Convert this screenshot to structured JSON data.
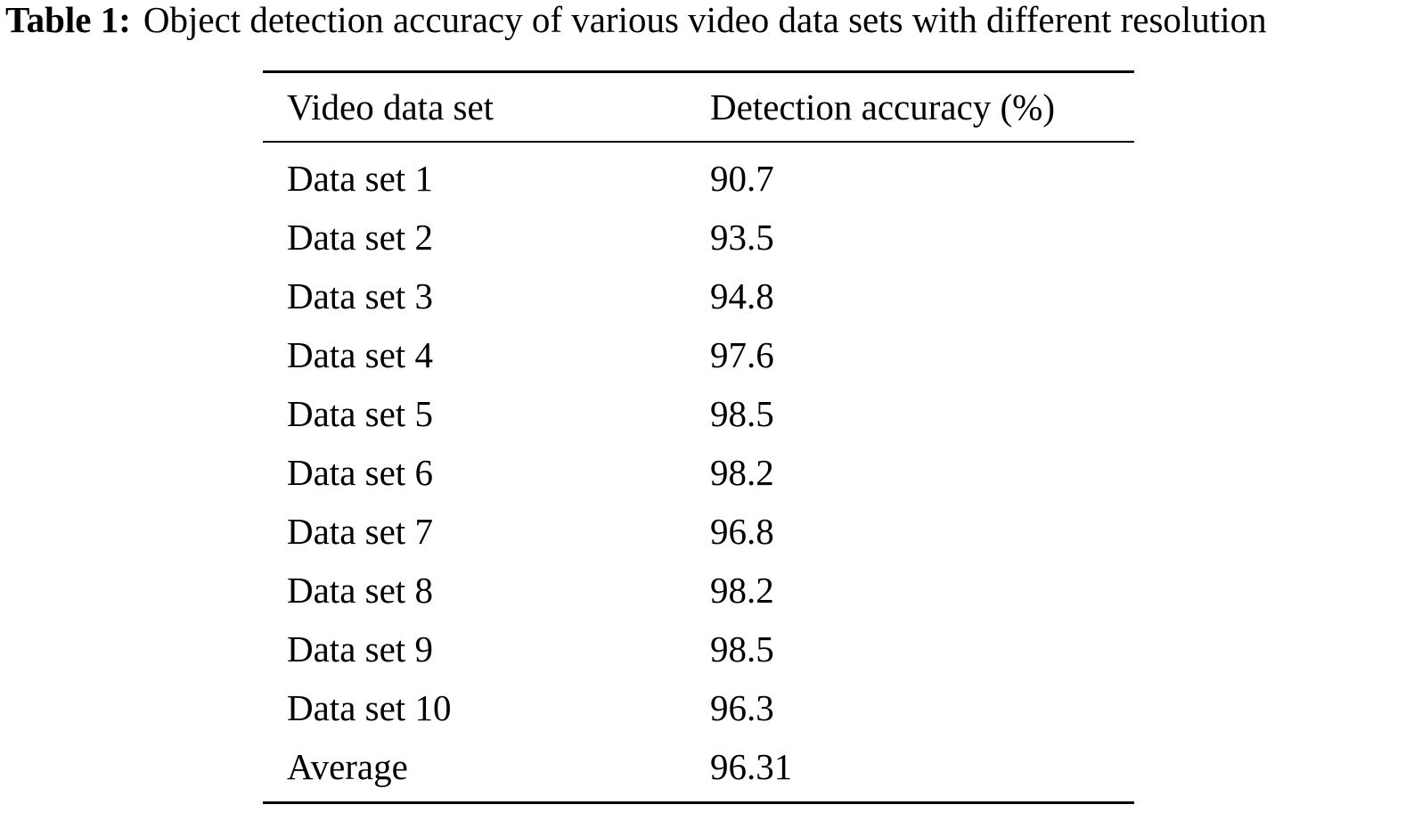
{
  "caption": {
    "label": "Table 1:",
    "text": "Object detection accuracy of various video data sets with different resolution"
  },
  "table": {
    "headers": [
      "Video data set",
      "Detection accuracy (%)"
    ],
    "rows": [
      [
        "Data set 1",
        "90.7"
      ],
      [
        "Data set 2",
        "93.5"
      ],
      [
        "Data set 3",
        "94.8"
      ],
      [
        "Data set 4",
        "97.6"
      ],
      [
        "Data set 5",
        "98.5"
      ],
      [
        "Data set 6",
        "98.2"
      ],
      [
        "Data set 7",
        "96.8"
      ],
      [
        "Data set 8",
        "98.2"
      ],
      [
        "Data set 9",
        "98.5"
      ],
      [
        "Data set 10",
        "96.3"
      ],
      [
        "Average",
        "96.31"
      ]
    ]
  }
}
